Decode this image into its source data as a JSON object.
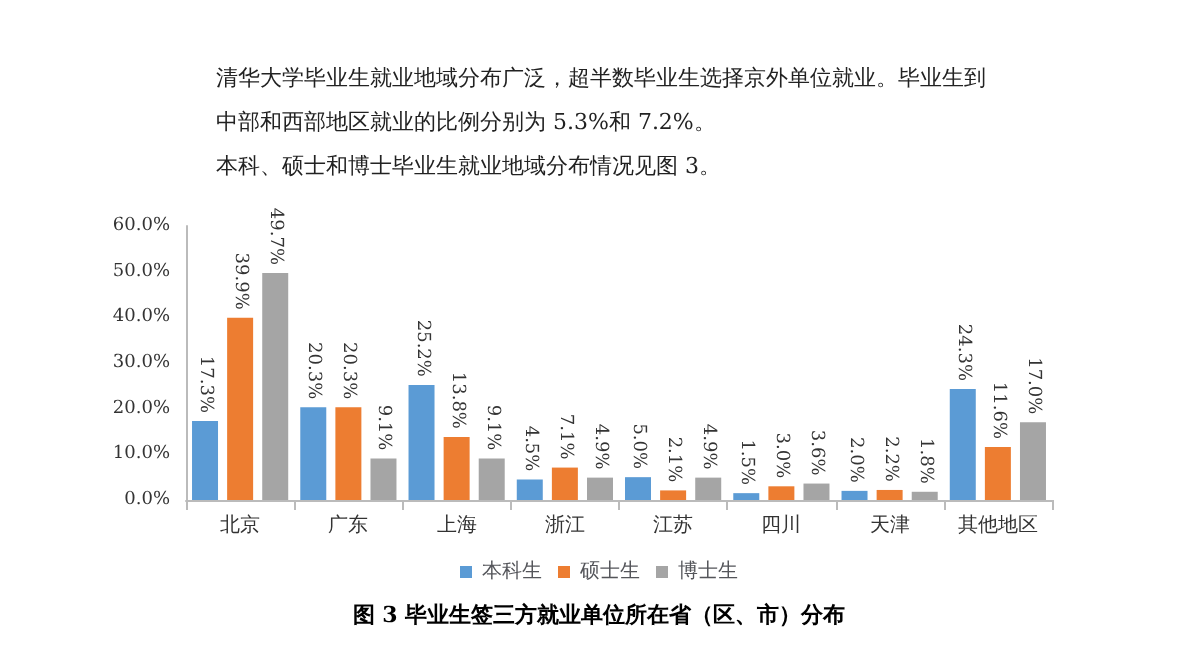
{
  "chart_data": {
    "type": "bar",
    "title": "图 3 毕业生签三方就业单位所在省（区、市）分布",
    "annotations": [
      "清华大学毕业生就业地域分布广泛，超半数毕业生选择京外单位就业。毕业生到中部和西部地区就业的比例分别为 5.3%和 7.2%。",
      "本科、硕士和博士毕业生就业地域分布情况见图 3。"
    ],
    "categories": [
      "北京",
      "广东",
      "上海",
      "浙江",
      "江苏",
      "四川",
      "天津",
      "其他地区"
    ],
    "series": [
      {
        "name": "本科生",
        "color": "#5b9bd5",
        "values": [
          17.3,
          20.3,
          25.2,
          4.5,
          5.0,
          1.5,
          2.0,
          24.3
        ],
        "value_labels": [
          "17.3%",
          "20.3%",
          "25.2%",
          "4.5%",
          "5.0%",
          "1.5%",
          "2.0%",
          "24.3%"
        ]
      },
      {
        "name": "硕士生",
        "color": "#ed7d31",
        "values": [
          39.9,
          20.3,
          13.8,
          7.1,
          2.1,
          3.0,
          2.2,
          11.6
        ],
        "value_labels": [
          "39.9%",
          "20.3%",
          "13.8%",
          "7.1%",
          "2.1%",
          "3.0%",
          "2.2%",
          "11.6%"
        ]
      },
      {
        "name": "博士生",
        "color": "#a5a5a5",
        "values": [
          49.7,
          9.1,
          9.1,
          4.9,
          4.9,
          3.6,
          1.8,
          17.0
        ],
        "value_labels": [
          "49.7%",
          "9.1%",
          "9.1%",
          "4.9%",
          "4.9%",
          "3.6%",
          "1.8%",
          "17.0%"
        ]
      }
    ],
    "ylim": [
      0,
      60
    ],
    "yticks": [
      {
        "value": 0,
        "label": "0.0%"
      },
      {
        "value": 10,
        "label": "10.0%"
      },
      {
        "value": 20,
        "label": "20.0%"
      },
      {
        "value": 30,
        "label": "30.0%"
      },
      {
        "value": 40,
        "label": "40.0%"
      },
      {
        "value": 50,
        "label": "50.0%"
      },
      {
        "value": 60,
        "label": "60.0%"
      }
    ],
    "grid": false,
    "legend": "bottom"
  }
}
